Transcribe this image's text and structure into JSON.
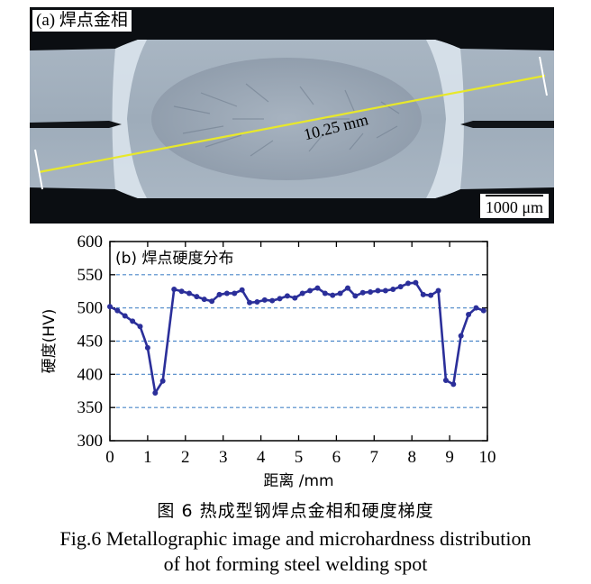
{
  "panel_a": {
    "label": "(a) 焊点金相",
    "measurement": "10.25 mm",
    "scale_bar": "1000 μm",
    "line_color": "#e8e82a"
  },
  "panel_b": {
    "label": "(b) 焊点硬度分布",
    "series_color": "#2b2f9a",
    "grid_color": "#4a86c8"
  },
  "chart_data": {
    "type": "line",
    "title": "(b) 焊点硬度分布",
    "xlabel": "距离 /mm",
    "ylabel": "硬度(HV)",
    "xlim": [
      0,
      10
    ],
    "ylim": [
      300,
      600
    ],
    "xticks": [
      0,
      1,
      2,
      3,
      4,
      5,
      6,
      7,
      8,
      9,
      10
    ],
    "yticks": [
      300,
      350,
      400,
      450,
      500,
      550,
      600
    ],
    "grid": "horizontal dashed",
    "series": [
      {
        "x": [
          0.0,
          0.2,
          0.4,
          0.6,
          0.8,
          1.0,
          1.2,
          1.4,
          1.7,
          1.9,
          2.1,
          2.3,
          2.5,
          2.7,
          2.9,
          3.1,
          3.3,
          3.5,
          3.7,
          3.9,
          4.1,
          4.3,
          4.5,
          4.7,
          4.9,
          5.1,
          5.3,
          5.5,
          5.7,
          5.9,
          6.1,
          6.3,
          6.5,
          6.7,
          6.9,
          7.1,
          7.3,
          7.5,
          7.7,
          7.9,
          8.1,
          8.3,
          8.5,
          8.7,
          8.9,
          9.1,
          9.3,
          9.5,
          9.7,
          9.9
        ],
        "y": [
          502,
          496,
          488,
          480,
          472,
          440,
          372,
          390,
          528,
          525,
          522,
          517,
          513,
          510,
          520,
          522,
          522,
          527,
          508,
          509,
          512,
          511,
          514,
          518,
          515,
          522,
          526,
          530,
          522,
          519,
          522,
          530,
          518,
          523,
          524,
          526,
          526,
          528,
          532,
          537,
          538,
          520,
          519,
          526,
          391,
          385,
          458,
          490,
          500,
          496
        ]
      }
    ]
  },
  "caption": {
    "cn": "图 6   热成型钢焊点金相和硬度梯度",
    "en_line1": "Fig.6  Metallographic image and microhardness distribution",
    "en_line2": "of hot forming steel welding spot"
  }
}
